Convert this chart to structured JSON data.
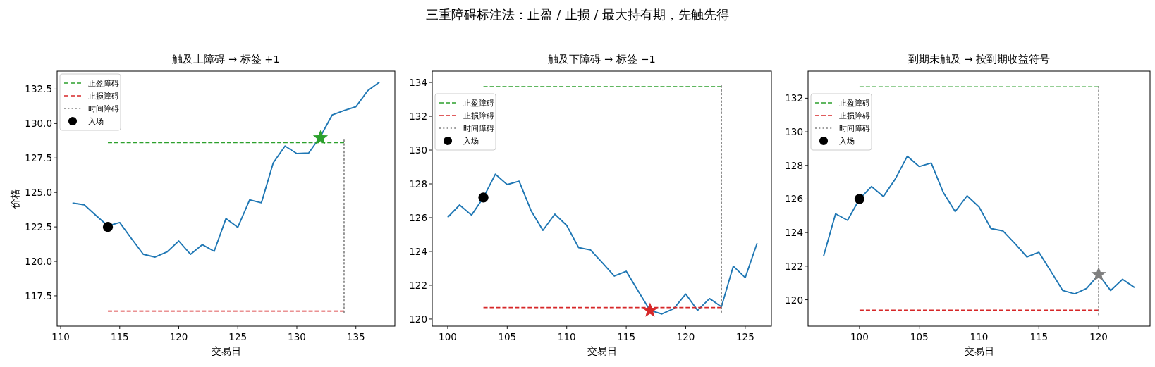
{
  "chart_data": [
    {
      "type": "line",
      "subtitle": "触及上障碍 → 标签 +1",
      "xlabel": "交易日",
      "ylabel": "价格",
      "legend": "top left",
      "x": [
        111,
        112,
        113,
        114,
        115,
        116,
        117,
        118,
        119,
        120,
        121,
        122,
        123,
        124,
        125,
        126,
        127,
        128,
        129,
        130,
        131,
        132,
        133,
        134,
        135,
        136,
        137
      ],
      "xlim": [
        109.7,
        138.3
      ],
      "ylim": [
        115.3,
        133.8
      ],
      "xticks": [
        110,
        115,
        120,
        125,
        130,
        135
      ],
      "yticks": [
        117.5,
        {
          "value": 120,
          "label": "120.0"
        },
        122.5,
        {
          "value": 125,
          "label": "125.0"
        },
        127.5,
        {
          "value": 130,
          "label": "130.0"
        },
        132.5
      ],
      "series": [
        {
          "type": "line",
          "color": "#1f77b4",
          "values": [
            124.23,
            124.1,
            123.32,
            122.57,
            122.82,
            121.65,
            120.51,
            120.31,
            120.68,
            121.48,
            120.51,
            121.21,
            120.73,
            123.11,
            122.47,
            124.46,
            124.25,
            127.14,
            128.37,
            127.82,
            127.86,
            129.06,
            130.63,
            130.94,
            131.22,
            132.38,
            133.01
          ]
        },
        {
          "type": "line",
          "name": "止盈障碍",
          "color": "#2ca02c",
          "line_style": "dashed",
          "x": [
            114,
            134
          ],
          "values": [
            128.62,
            128.62
          ]
        },
        {
          "type": "line",
          "name": "止损障碍",
          "color": "#d62728",
          "line_style": "dashed",
          "x": [
            114,
            134
          ],
          "values": [
            116.39,
            116.39
          ]
        },
        {
          "type": "line",
          "name": "时间障碍",
          "color": "#7f7f7f",
          "line_style": "dotted",
          "x": [
            134,
            134
          ],
          "values": [
            116.3,
            128.8
          ]
        },
        {
          "type": "scatter",
          "name": "入场",
          "color": "#000000",
          "marker": "circle",
          "x": [
            114
          ],
          "values": [
            122.5
          ]
        },
        {
          "type": "scatter",
          "color": "#2ca02c",
          "marker": "star",
          "x": [
            132
          ],
          "values": [
            128.96
          ]
        }
      ]
    },
    {
      "type": "line",
      "title": "三重障碍标注法：止盈 / 止损 / 最大持有期，先触先得",
      "subtitle": "触及下障碍 → 标签 −1",
      "xlabel": "交易日",
      "legend": "top left",
      "x": [
        100,
        101,
        102,
        103,
        104,
        105,
        106,
        107,
        108,
        109,
        110,
        111,
        112,
        113,
        114,
        115,
        116,
        117,
        118,
        119,
        120,
        121,
        122,
        123,
        124,
        125,
        126
      ],
      "xlim": [
        98.7,
        127.2
      ],
      "ylim": [
        119.58,
        134.67
      ],
      "xticks": [
        100,
        105,
        110,
        115,
        120,
        125
      ],
      "yticks": [
        120,
        122,
        124,
        126,
        128,
        130,
        132,
        134
      ],
      "series": [
        {
          "type": "line",
          "color": "#1f77b4",
          "values": [
            126.02,
            126.75,
            126.15,
            127.19,
            128.57,
            127.96,
            128.16,
            126.42,
            125.25,
            126.21,
            125.54,
            124.23,
            124.09,
            123.33,
            122.54,
            122.83,
            121.66,
            120.51,
            120.3,
            120.62,
            121.48,
            120.51,
            121.21,
            120.73,
            123.13,
            122.45,
            124.49
          ]
        },
        {
          "type": "line",
          "name": "止盈障碍",
          "color": "#2ca02c",
          "line_style": "dashed",
          "x": [
            103,
            123
          ],
          "values": [
            133.75,
            133.75
          ]
        },
        {
          "type": "line",
          "name": "止损障碍",
          "color": "#d62728",
          "line_style": "dashed",
          "x": [
            103,
            123
          ],
          "values": [
            120.68,
            120.68
          ]
        },
        {
          "type": "line",
          "name": "时间障碍",
          "color": "#7f7f7f",
          "line_style": "dotted",
          "x": [
            123,
            123
          ],
          "values": [
            120.4,
            133.8
          ]
        },
        {
          "type": "scatter",
          "name": "入场",
          "color": "#000000",
          "marker": "circle",
          "x": [
            103
          ],
          "values": [
            127.19
          ]
        },
        {
          "type": "scatter",
          "color": "#d62728",
          "marker": "star",
          "x": [
            117
          ],
          "values": [
            120.51
          ]
        }
      ]
    },
    {
      "type": "line",
      "subtitle": "到期未触及 → 按到期收益符号",
      "xlabel": "交易日",
      "legend": "top left",
      "x": [
        97,
        98,
        99,
        100,
        101,
        102,
        103,
        104,
        105,
        106,
        107,
        108,
        109,
        110,
        111,
        112,
        113,
        114,
        115,
        116,
        117,
        118,
        119,
        120,
        121,
        122,
        123
      ],
      "xlim": [
        95.7,
        124.3
      ],
      "ylim": [
        118.43,
        133.61
      ],
      "xticks": [
        100,
        105,
        110,
        115,
        120
      ],
      "yticks": [
        120,
        122,
        124,
        126,
        128,
        130,
        132
      ],
      "series": [
        {
          "type": "line",
          "color": "#1f77b4",
          "values": [
            122.61,
            125.12,
            124.73,
            126.0,
            126.74,
            126.15,
            127.2,
            128.55,
            127.93,
            128.14,
            126.4,
            125.25,
            126.19,
            125.53,
            124.24,
            124.1,
            123.35,
            122.55,
            122.83,
            121.7,
            120.55,
            120.35,
            120.68,
            121.5,
            120.55,
            121.22,
            120.73
          ]
        },
        {
          "type": "line",
          "name": "止盈障碍",
          "color": "#2ca02c",
          "line_style": "dashed",
          "x": [
            100,
            120
          ],
          "values": [
            132.68,
            132.68
          ]
        },
        {
          "type": "line",
          "name": "止损障碍",
          "color": "#d62728",
          "line_style": "dashed",
          "x": [
            100,
            120
          ],
          "values": [
            119.38,
            119.38
          ]
        },
        {
          "type": "line",
          "name": "时间障碍",
          "color": "#7f7f7f",
          "line_style": "dotted",
          "x": [
            120,
            120
          ],
          "values": [
            119.1,
            132.7
          ]
        },
        {
          "type": "scatter",
          "name": "入场",
          "color": "#000000",
          "marker": "circle",
          "x": [
            100
          ],
          "values": [
            126.0
          ]
        },
        {
          "type": "scatter",
          "color": "#7f7f7f",
          "marker": "star",
          "x": [
            120
          ],
          "values": [
            121.5
          ]
        }
      ]
    }
  ]
}
